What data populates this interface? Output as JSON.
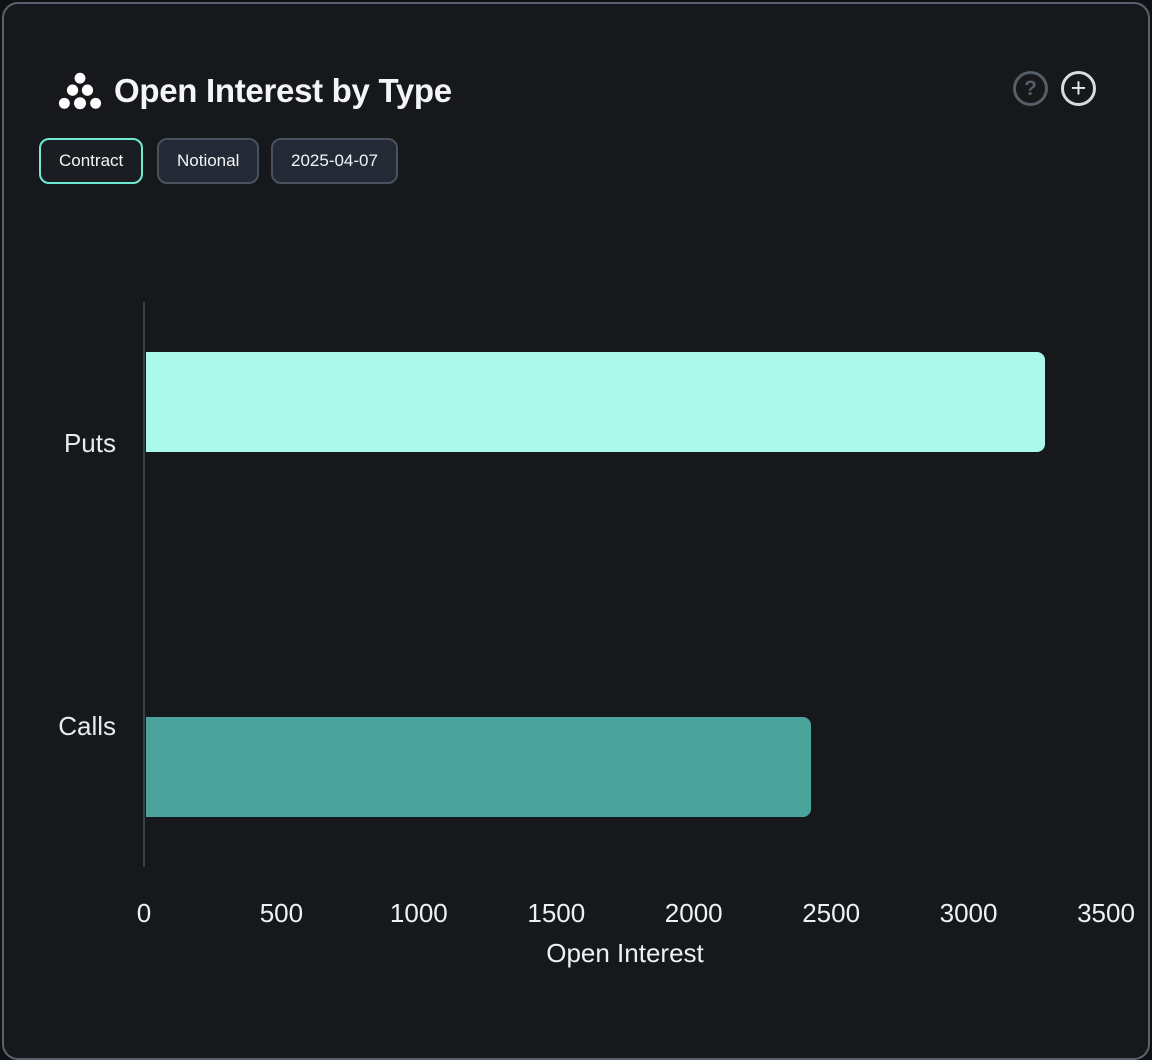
{
  "header": {
    "title": "Open Interest by Type",
    "help_label": "?",
    "add_label": "+"
  },
  "toolbar": {
    "buttons": [
      {
        "label": "Contract",
        "active": true
      },
      {
        "label": "Notional",
        "active": false
      },
      {
        "label": "2025-04-07",
        "active": false
      }
    ]
  },
  "chart_data": {
    "type": "bar",
    "orientation": "horizontal",
    "title": "Open Interest by Type",
    "categories": [
      "Puts",
      "Calls"
    ],
    "values": [
      3270,
      2420
    ],
    "bar_colors": [
      "#aaf8e9",
      "#4aa49c"
    ],
    "xlabel": "Open Interest",
    "ylabel": "",
    "x_ticks": [
      0,
      500,
      1000,
      1500,
      2000,
      2500,
      3000,
      3500
    ],
    "xlim": [
      0,
      3500
    ],
    "grid": false,
    "legend": "none"
  },
  "colors": {
    "background": "#0f1114",
    "card_background": "#16181b",
    "card_border": "#59616e",
    "accent_teal": "#6fe9d1",
    "bar_puts": "#aaf8e9",
    "bar_calls": "#4aa49c",
    "axis_line": "#3a3f46",
    "text": "#f2f4f6"
  }
}
